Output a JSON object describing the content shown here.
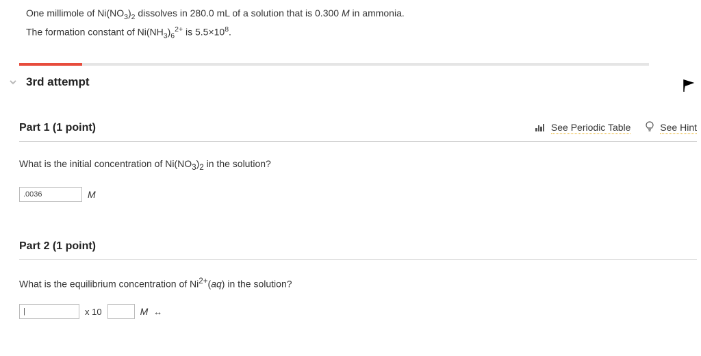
{
  "prompt": {
    "line1_a": "One millimole of Ni(NO",
    "line1_sub1": "3",
    "line1_b": ")",
    "line1_sub2": "2",
    "line1_c": " dissolves in 280.0 mL of a solution that is 0.300 ",
    "line1_italic": "M ",
    "line1_d": " in ammonia.",
    "line2_a": "The formation constant of Ni(NH",
    "line2_sub1": "3",
    "line2_b": ")",
    "line2_sub2": "6",
    "line2_sup1": "2+",
    "line2_c": " is  5.5×10",
    "line2_sup2": "8",
    "line2_d": "."
  },
  "progress": {
    "fill_pct": 10,
    "fill_color": "#e74c3c",
    "track_color": "#e5e5e5"
  },
  "attempt": {
    "title": "3rd attempt"
  },
  "links": {
    "periodic": "See Periodic Table",
    "hint": "See Hint"
  },
  "part1": {
    "label": "Part 1    (1 point)",
    "question_a": "What is the initial concentration of Ni(NO",
    "question_sub1": "3",
    "question_b": ")",
    "question_sub2": "2",
    "question_c": " in the solution?",
    "value": ".0036",
    "unit": "M"
  },
  "part2": {
    "label": "Part 2    (1 point)",
    "question_a": "What is the equilibrium concentration of Ni",
    "question_sup": "2+",
    "question_b": "(",
    "question_i": "aq",
    "question_c": ") in the solution?",
    "value": "|",
    "times": "x  10",
    "exp": "",
    "unit": "M"
  },
  "colors": {
    "link_underline": "#e6a400",
    "text": "#333333",
    "border": "#cccccc"
  }
}
